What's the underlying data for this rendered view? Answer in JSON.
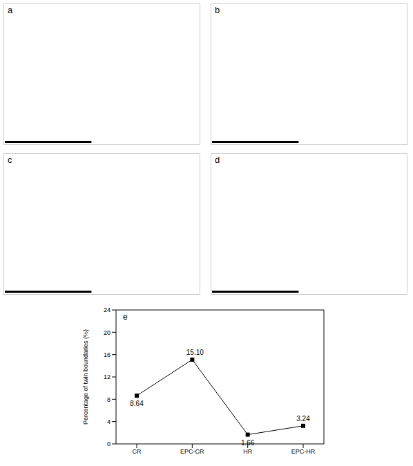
{
  "panels": [
    {
      "label": "a"
    },
    {
      "label": "b"
    },
    {
      "label": "c"
    },
    {
      "label": "d"
    }
  ],
  "chart_label": "e",
  "chart_data": {
    "type": "line",
    "y_label": "Percentage of twin boundaries (%)",
    "categories": [
      "CR",
      "EPC-CR",
      "HR",
      "EPC-HR"
    ],
    "values": [
      8.64,
      15.1,
      1.66,
      3.24
    ],
    "value_labels": [
      "8.64",
      "15.10",
      "1.66",
      "3.24"
    ],
    "data_labels": true,
    "color": "#000000",
    "marker": "square",
    "line_style": "solid",
    "ylim": [
      0,
      24
    ],
    "yticks": [
      0,
      4,
      8,
      12,
      16,
      20,
      24
    ],
    "grid": false
  }
}
